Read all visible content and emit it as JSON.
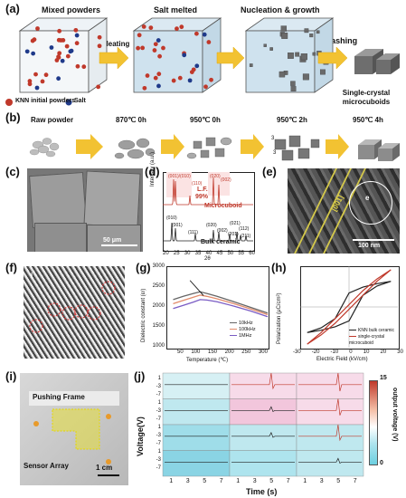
{
  "panels": {
    "a": {
      "label": "(a)",
      "steps": [
        "Mixed powders",
        "Salt melted",
        "Nucleation & growth",
        "Washing"
      ],
      "arrow_heating": "Heating",
      "product": "Single-crystal microcuboids",
      "product_line1": "Single-crystal",
      "product_line2": "microcuboids",
      "legend_knn": "KNN initial powders",
      "legend_salt": "Salt",
      "colors": {
        "knn": "#c0392b",
        "salt": "#1f3a8a",
        "arrow": "#f2c232"
      }
    },
    "b": {
      "label": "(b)",
      "stages": [
        "Raw powder",
        "870℃ 0h",
        "950℃ 0h",
        "950℃ 2h",
        "950℃ 4h"
      ],
      "annotations": [
        "3",
        "3"
      ]
    },
    "c": {
      "label": "(c)",
      "scalebar": "50 μm"
    },
    "d": {
      "label": "(d)",
      "ylabel": "Intensity (a.u.)",
      "xlabel": "2θ",
      "xticks": [
        "20",
        "25",
        "30",
        "35",
        "40",
        "45",
        "50",
        "55",
        "60"
      ],
      "lf_label": "L.F.",
      "lf_value": "99%",
      "top_label": "Microcuboid",
      "bottom_label": "Bulk ceramic",
      "top_peaks": [
        "(001)",
        "(010)",
        "(110)",
        "(020)",
        "(002)"
      ],
      "top_peak_label_a": "(001)/(010)",
      "bottom_peaks": [
        "(010)",
        "(001)",
        "(111)",
        "(020)",
        "(002)",
        "(021)",
        "(112)",
        "(201)",
        "(211)"
      ]
    },
    "e": {
      "label": "(e)",
      "inset": "e",
      "annotation": "[001]",
      "scalebar": "100 nm"
    },
    "f": {
      "label": "(f)",
      "marker": "i"
    },
    "g": {
      "label": "(g)",
      "ylabel": "Dielectric constant (εr)",
      "xlabel": "Temperature (℃)",
      "xticks": [
        "50",
        "100",
        "150",
        "200",
        "250",
        "300"
      ],
      "yticks": [
        "1000",
        "1500",
        "2000",
        "2500",
        "3000"
      ],
      "legend": [
        "10kHz",
        "100kHz",
        "1MHz"
      ],
      "colors": [
        "#666666",
        "#e28b6b",
        "#7a5cc4"
      ]
    },
    "h": {
      "label": "(h)",
      "ylabel": "Polarization (μC/cm²)",
      "xlabel": "Electric Field (kV/cm)",
      "xticks": [
        "-30",
        "-20",
        "-10",
        "0",
        "10",
        "20",
        "30"
      ],
      "yticks": [
        "-30",
        "-20",
        "-10",
        "0",
        "10",
        "20",
        "30"
      ],
      "legend": [
        "KNN bulk ceramic",
        "single-crystal microcuboid"
      ],
      "colors": [
        "#222222",
        "#c0392b"
      ]
    },
    "i": {
      "label": "(i)",
      "pushing_frame": "Pushing Frame",
      "sensor_array": "Sensor Array",
      "scalebar": "1 cm"
    },
    "j": {
      "label": "(j)",
      "ylabel": "Voltage(V)",
      "xlabel": "Time (s)",
      "xticks": [
        "1",
        "3",
        "5",
        "7"
      ],
      "yticks": [
        "1",
        "-3",
        "-7"
      ],
      "colorbar_title": "output voltage (V)",
      "colorbar_max": "15",
      "colorbar_min": "0"
    }
  },
  "chart_data": [
    {
      "type": "line",
      "xlabel": "Temperature (℃)",
      "ylabel": "Dielectric constant (εr)",
      "xlim": [
        0,
        300
      ],
      "ylim": [
        1000,
        3000
      ],
      "series": [
        {
          "name": "10kHz",
          "x": [
            20,
            50,
            80,
            100,
            120,
            150,
            200,
            250,
            300
          ],
          "y": [
            2180,
            2260,
            2330,
            2370,
            2330,
            2260,
            2130,
            1990,
            1850
          ]
        },
        {
          "name": "100kHz",
          "x": [
            20,
            50,
            80,
            100,
            120,
            150,
            200,
            250,
            300
          ],
          "y": [
            2080,
            2160,
            2240,
            2290,
            2260,
            2200,
            2080,
            1950,
            1810
          ]
        },
        {
          "name": "1MHz",
          "x": [
            20,
            50,
            80,
            100,
            120,
            150,
            200,
            250,
            300
          ],
          "y": [
            1960,
            2040,
            2120,
            2180,
            2170,
            2130,
            2020,
            1900,
            1760
          ]
        }
      ]
    },
    {
      "type": "line",
      "xlabel": "Electric Field (kV/cm)",
      "ylabel": "Polarization (μC/cm²)",
      "xlim": [
        -35,
        35
      ],
      "ylim": [
        -35,
        35
      ],
      "series": [
        {
          "name": "KNN bulk ceramic",
          "x": [
            -30,
            -20,
            -10,
            0,
            10,
            20,
            30,
            20,
            10,
            0,
            -10,
            -20,
            -30
          ],
          "y": [
            -22,
            -20,
            -17,
            -12,
            10,
            18,
            22,
            20,
            17,
            12,
            -10,
            -18,
            -22
          ]
        },
        {
          "name": "single-crystal microcuboid",
          "x": [
            -30,
            -20,
            -10,
            0,
            10,
            20,
            30,
            20,
            10,
            0,
            -10,
            -20,
            -30
          ],
          "y": [
            -32,
            -24,
            -14,
            -2,
            10,
            22,
            32,
            24,
            14,
            2,
            -10,
            -22,
            -32
          ]
        }
      ]
    }
  ]
}
